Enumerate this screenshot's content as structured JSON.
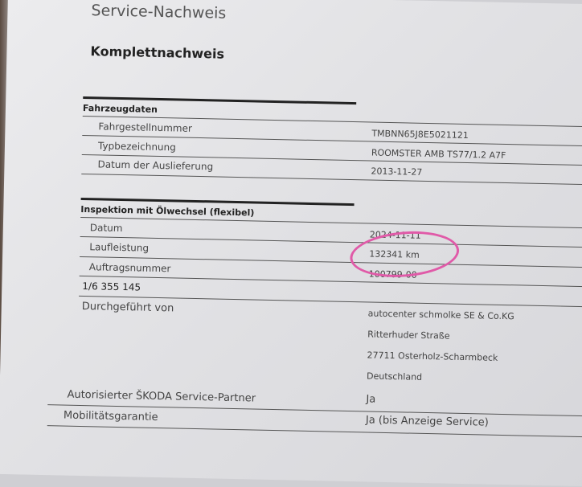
{
  "header": {
    "title": "Service-Nachweis",
    "subtitle": "Komplettnachweis"
  },
  "vehicle": {
    "heading": "Fahrzeugdaten",
    "rows": [
      {
        "label": "Fahrgestellnummer",
        "value": "TMBNN65J8E5021121"
      },
      {
        "label": "Typbezeichnung",
        "value": "ROOMSTER AMB TS77/1.2 A7F"
      },
      {
        "label": "Datum der Auslieferung",
        "value": "2013-11-27"
      }
    ]
  },
  "inspection": {
    "heading": "Inspektion mit Ölwechsel (flexibel)",
    "rows": [
      {
        "label": "Datum",
        "value": "2024-11-11"
      },
      {
        "label": "Laufleistung",
        "value": "132341 km"
      },
      {
        "label": "Auftragsnummer",
        "value": "100799-00"
      }
    ],
    "code": "1/6 355 145",
    "performed_by_label": "Durchgeführt von",
    "performed_by": [
      "autocenter schmolke SE & Co.KG",
      "Ritterhuder Straße",
      "27711 Osterholz-Scharmbeck",
      "Deutschland"
    ],
    "partner_label": "Autorisierter ŠKODA Service-Partner",
    "partner_value": "Ja",
    "mobility_label": "Mobilitätsgarantie",
    "mobility_value": "Ja (bis Anzeige Service)"
  },
  "colors": {
    "highlight": "#e05aa8"
  }
}
